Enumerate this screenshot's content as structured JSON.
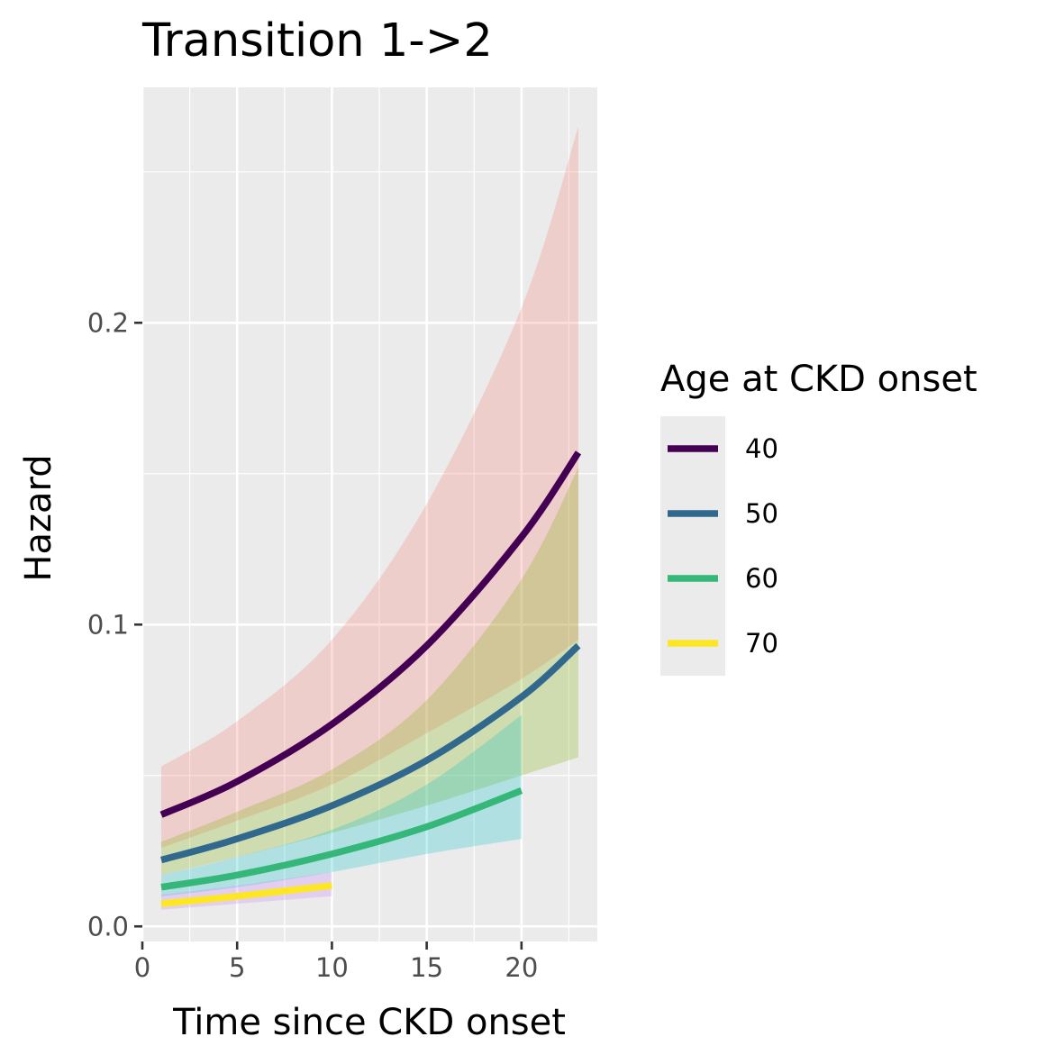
{
  "chart_data": {
    "type": "line",
    "title": "Transition 1->2",
    "xlabel": "Time since CKD onset",
    "ylabel": "Hazard",
    "xlim": [
      0,
      24
    ],
    "ylim": [
      -0.005,
      0.278
    ],
    "x_ticks": [
      "0",
      "5",
      "10",
      "15",
      "20"
    ],
    "x_tick_values": [
      0,
      5,
      10,
      15,
      20
    ],
    "y_ticks": [
      "0.0",
      "0.1",
      "0.2"
    ],
    "y_tick_values": [
      0,
      0.1,
      0.2
    ],
    "grid": true,
    "panel_background": "#ebebeb",
    "legend": {
      "title": "Age at CKD onset",
      "position": "right",
      "entries": [
        "40",
        "50",
        "60",
        "70"
      ]
    },
    "series": [
      {
        "name": "40",
        "color": "#440154",
        "band_color": "#f8766d",
        "x": [
          1,
          5,
          10,
          15,
          20,
          23
        ],
        "y": [
          0.037,
          0.048,
          0.067,
          0.093,
          0.129,
          0.157
        ],
        "lower": [
          0.026,
          0.035,
          0.047,
          0.064,
          0.082,
          0.095
        ],
        "upper": [
          0.053,
          0.068,
          0.095,
          0.14,
          0.205,
          0.265
        ]
      },
      {
        "name": "50",
        "color": "#31688e",
        "band_color": "#7cae00",
        "x": [
          1,
          5,
          10,
          15,
          20,
          23
        ],
        "y": [
          0.022,
          0.029,
          0.04,
          0.055,
          0.076,
          0.093
        ],
        "lower": [
          0.017,
          0.023,
          0.031,
          0.04,
          0.05,
          0.056
        ],
        "upper": [
          0.028,
          0.038,
          0.052,
          0.075,
          0.115,
          0.152
        ]
      },
      {
        "name": "60",
        "color": "#35b779",
        "band_color": "#00bfc4",
        "x": [
          1,
          5,
          10,
          15,
          20
        ],
        "y": [
          0.013,
          0.017,
          0.024,
          0.033,
          0.045
        ],
        "lower": [
          0.01,
          0.013,
          0.018,
          0.024,
          0.029
        ],
        "upper": [
          0.017,
          0.023,
          0.032,
          0.047,
          0.07
        ]
      },
      {
        "name": "70",
        "color": "#fde725",
        "band_color": "#c77cff",
        "x": [
          1,
          5,
          10
        ],
        "y": [
          0.0075,
          0.01,
          0.0135
        ],
        "lower": [
          0.0055,
          0.0075,
          0.01
        ],
        "upper": [
          0.0105,
          0.0135,
          0.018
        ]
      }
    ]
  }
}
